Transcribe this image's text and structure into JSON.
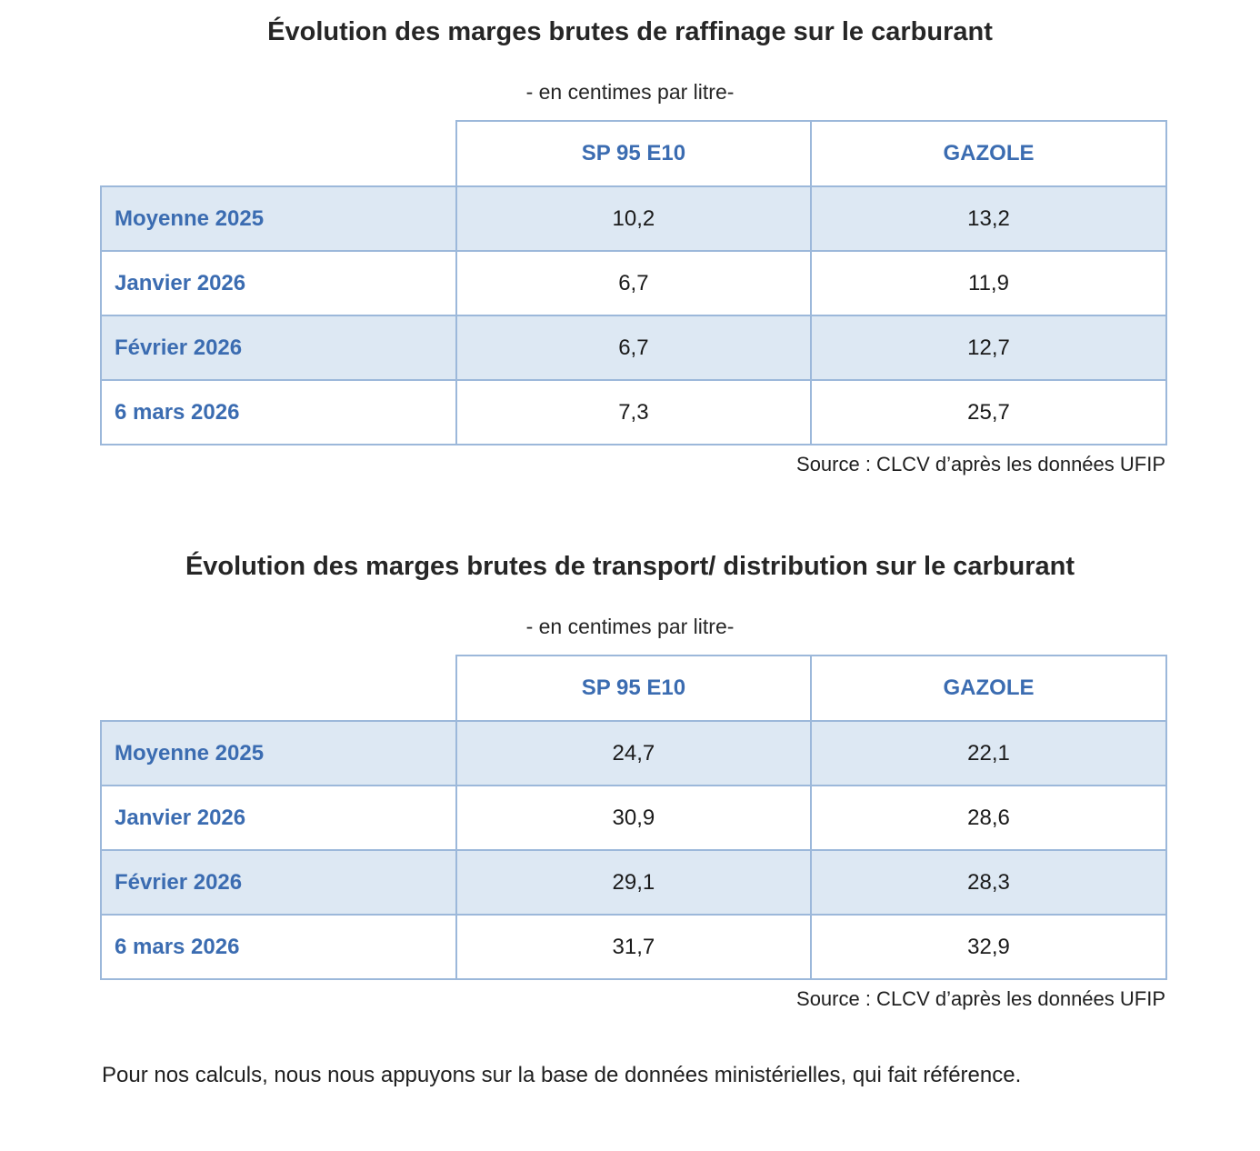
{
  "colors": {
    "page_bg": "#ffffff",
    "title_text": "#262626",
    "accent_text": "#3b6cb1",
    "table_border": "#9cb8da",
    "row_fill": "#dde8f3",
    "value_text": "#1a1a1a"
  },
  "sections": [
    {
      "title": "Évolution des marges brutes de raffinage sur le carburant",
      "subtitle": "- en centimes par litre-",
      "source": "Source : CLCV d’après les données UFIP",
      "table": {
        "columns": [
          "SP 95 E10",
          "GAZOLE"
        ],
        "rows": [
          {
            "label": "Moyenne 2025",
            "values": [
              "10,2",
              "13,2"
            ]
          },
          {
            "label": "Janvier 2026",
            "values": [
              "6,7",
              "11,9"
            ]
          },
          {
            "label": "Février 2026",
            "values": [
              "6,7",
              "12,7"
            ]
          },
          {
            "label": "6 mars 2026",
            "values": [
              "7,3",
              "25,7"
            ]
          }
        ]
      }
    },
    {
      "title": "Évolution des marges brutes de transport/ distribution sur le carburant",
      "subtitle": "- en centimes par litre-",
      "source": "Source : CLCV d’après les données UFIP",
      "table": {
        "columns": [
          "SP 95 E10",
          "GAZOLE"
        ],
        "rows": [
          {
            "label": "Moyenne 2025",
            "values": [
              "24,7",
              "22,1"
            ]
          },
          {
            "label": "Janvier 2026",
            "values": [
              "30,9",
              "28,6"
            ]
          },
          {
            "label": "Février 2026",
            "values": [
              "29,1",
              "28,3"
            ]
          },
          {
            "label": "6 mars 2026",
            "values": [
              "31,7",
              "32,9"
            ]
          }
        ]
      }
    }
  ],
  "footer": {
    "note": "Pour nos calculs, nous nous appuyons sur la base de données ministérielles, qui fait référence."
  }
}
